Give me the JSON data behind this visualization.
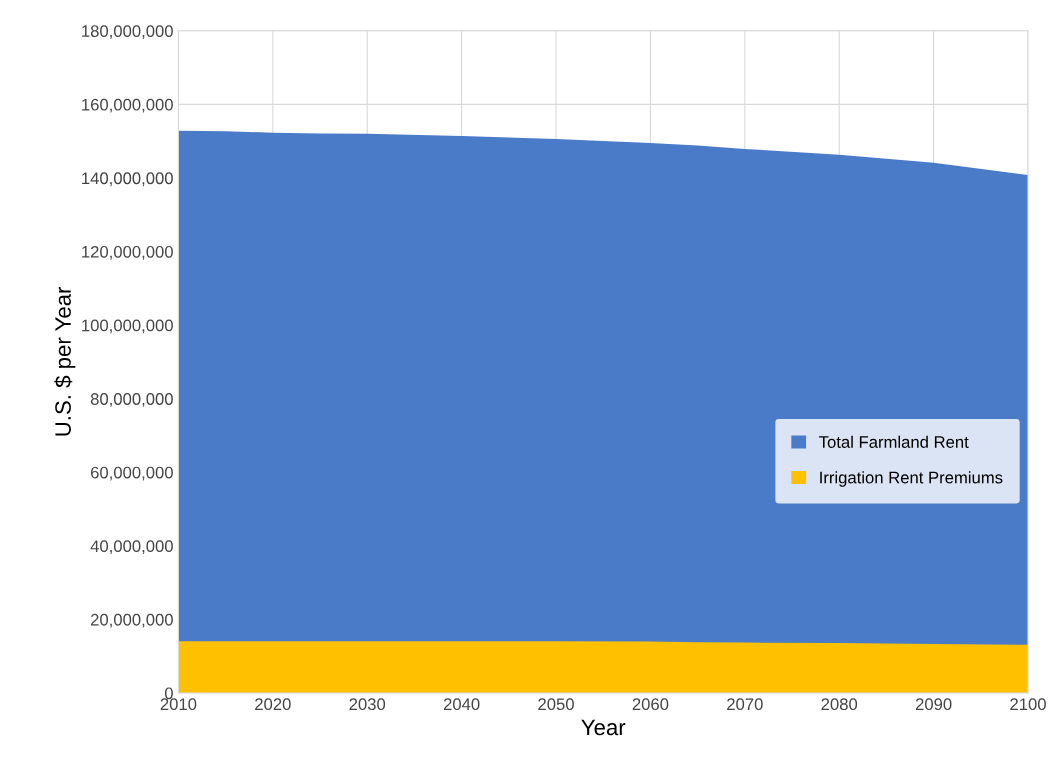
{
  "chart_data": {
    "type": "area",
    "xlabel": "Year",
    "ylabel": "U.S. $ per Year",
    "x": [
      2010,
      2015,
      2020,
      2025,
      2030,
      2040,
      2050,
      2060,
      2065,
      2070,
      2080,
      2090,
      2100
    ],
    "series": [
      {
        "name": "Total Farmland Rent",
        "color": "#4a7bc8",
        "values": [
          152800000,
          152700000,
          152300000,
          152100000,
          152000000,
          151400000,
          150600000,
          149500000,
          148800000,
          147900000,
          146300000,
          144100000,
          140800000
        ]
      },
      {
        "name": "Irrigation Rent Premiums",
        "color": "#ffc000",
        "values": [
          14100000,
          14100000,
          14100000,
          14100000,
          14100000,
          14100000,
          14100000,
          14000000,
          13800000,
          13700000,
          13600000,
          13300000,
          13100000
        ]
      }
    ],
    "xlim": [
      2010,
      2100
    ],
    "xticks": [
      2010,
      2020,
      2030,
      2040,
      2050,
      2060,
      2070,
      2080,
      2090,
      2100
    ],
    "ylim": [
      0,
      180000000
    ],
    "yticks": [
      {
        "value": 0,
        "label": "0"
      },
      {
        "value": 20000000,
        "label": "20,000,000"
      },
      {
        "value": 40000000,
        "label": "40,000,000"
      },
      {
        "value": 60000000,
        "label": "60,000,000"
      },
      {
        "value": 80000000,
        "label": "80,000,000"
      },
      {
        "value": 100000000,
        "label": "100,000,000"
      },
      {
        "value": 120000000,
        "label": "120,000,000"
      },
      {
        "value": 140000000,
        "label": "140,000,000"
      },
      {
        "value": 160000000,
        "label": "160,000,000"
      },
      {
        "value": 180000000,
        "label": "180,000,000"
      }
    ],
    "grid": true,
    "legend": "right"
  }
}
